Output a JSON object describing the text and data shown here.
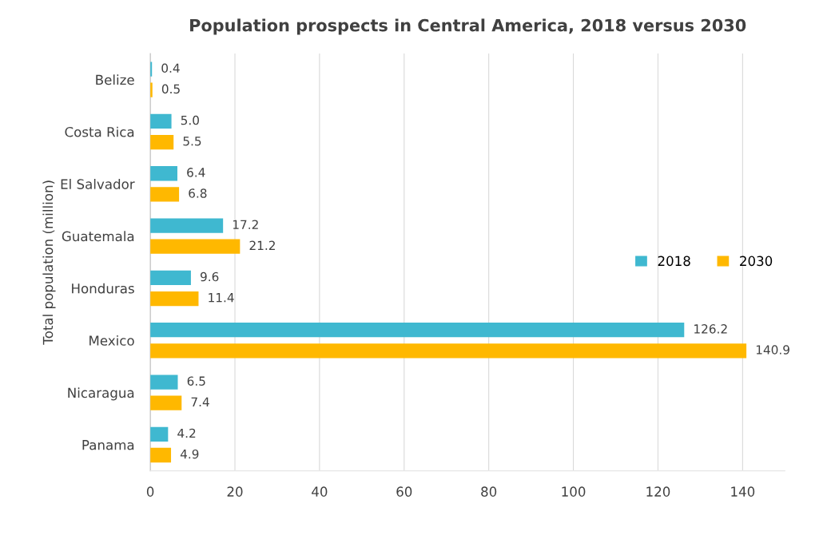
{
  "chart_data": {
    "type": "bar",
    "orientation": "horizontal",
    "title": "Population prospects in Central America, 2018 versus 2030",
    "ylabel": "Total population (million)",
    "categories": [
      "Belize",
      "Costa Rica",
      "El Salvador",
      "Guatemala",
      "Honduras",
      "Mexico",
      "Nicaragua",
      "Panama"
    ],
    "series": [
      {
        "name": "2018",
        "color": "#3fb8d0",
        "values": [
          0.4,
          5.0,
          6.4,
          17.2,
          9.6,
          126.2,
          6.5,
          4.2
        ],
        "value_labels": [
          "0.4",
          "5.0",
          "6.4",
          "17.2",
          "9.6",
          "126.2",
          "6.5",
          "4.2"
        ]
      },
      {
        "name": "2030",
        "color": "#ffb800",
        "values": [
          0.5,
          5.5,
          6.8,
          21.2,
          11.4,
          140.9,
          7.4,
          4.9
        ],
        "value_labels": [
          "0.5",
          "5.5",
          "6.8",
          "21.2",
          "11.4",
          "140.9",
          "7.4",
          "4.9"
        ]
      }
    ],
    "xlim": [
      0,
      150
    ],
    "xticks": [
      0,
      20,
      40,
      60,
      80,
      100,
      120,
      140
    ],
    "grid": "x",
    "legend": "right"
  }
}
